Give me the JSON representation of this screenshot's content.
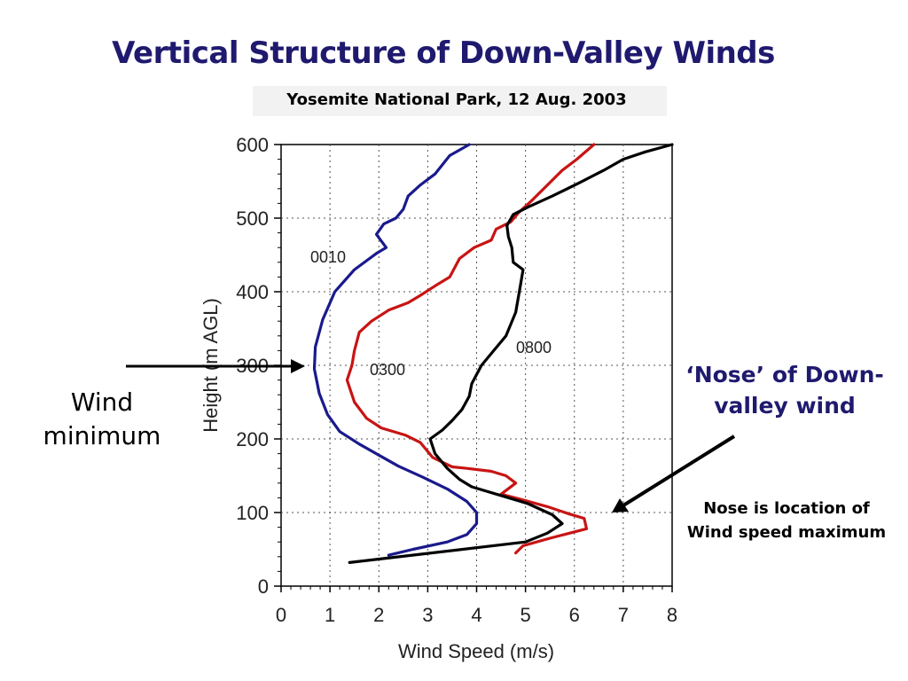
{
  "slide": {
    "title": "Vertical Structure of Down-Valley Winds",
    "subtitle": "Yosemite National Park, 12 Aug. 2003"
  },
  "annotations": {
    "wind_minimum": "Wind minimum",
    "nose": "‘Nose’ of Down-valley wind",
    "nose_desc": "Nose is location of Wind speed maximum"
  },
  "chart_data": {
    "type": "line",
    "xlabel": "Wind Speed (m/s)",
    "ylabel": "Height (m AGL)",
    "xlim": [
      0,
      8
    ],
    "ylim": [
      0,
      600
    ],
    "x_ticks": [
      "0",
      "1",
      "2",
      "3",
      "4",
      "5",
      "6",
      "7",
      "8"
    ],
    "y_ticks": [
      "0",
      "100",
      "200",
      "300",
      "400",
      "500",
      "600"
    ],
    "grid": true,
    "series": [
      {
        "name": "0010",
        "color": "#1a1a8c",
        "points": [
          [
            2.2,
            42
          ],
          [
            2.7,
            50
          ],
          [
            3.4,
            60
          ],
          [
            3.8,
            70
          ],
          [
            4.0,
            85
          ],
          [
            4.0,
            100
          ],
          [
            3.8,
            115
          ],
          [
            3.4,
            132
          ],
          [
            2.9,
            148
          ],
          [
            2.4,
            163
          ],
          [
            2.0,
            178
          ],
          [
            1.6,
            193
          ],
          [
            1.2,
            210
          ],
          [
            0.95,
            233
          ],
          [
            0.78,
            262
          ],
          [
            0.68,
            295
          ],
          [
            0.7,
            325
          ],
          [
            0.85,
            362
          ],
          [
            1.1,
            400
          ],
          [
            1.5,
            430
          ],
          [
            1.95,
            452
          ],
          [
            2.15,
            460
          ],
          [
            1.95,
            478
          ],
          [
            2.1,
            492
          ],
          [
            2.35,
            500
          ],
          [
            2.5,
            512
          ],
          [
            2.6,
            530
          ],
          [
            2.85,
            545
          ],
          [
            3.15,
            560
          ],
          [
            3.45,
            585
          ],
          [
            3.85,
            600
          ]
        ]
      },
      {
        "name": "0300",
        "color": "#c81414",
        "points": [
          [
            4.8,
            45
          ],
          [
            4.95,
            55
          ],
          [
            5.5,
            65
          ],
          [
            6.25,
            78
          ],
          [
            6.2,
            92
          ],
          [
            5.9,
            98
          ],
          [
            5.45,
            108
          ],
          [
            4.9,
            118
          ],
          [
            4.5,
            125
          ],
          [
            4.8,
            140
          ],
          [
            4.7,
            145
          ],
          [
            4.6,
            150
          ],
          [
            4.3,
            156
          ],
          [
            3.8,
            160
          ],
          [
            3.5,
            162
          ],
          [
            3.25,
            170
          ],
          [
            3.1,
            175
          ],
          [
            2.85,
            195
          ],
          [
            2.55,
            205
          ],
          [
            2.05,
            215
          ],
          [
            1.75,
            228
          ],
          [
            1.5,
            250
          ],
          [
            1.35,
            280
          ],
          [
            1.45,
            300
          ],
          [
            1.5,
            320
          ],
          [
            1.6,
            345
          ],
          [
            1.85,
            360
          ],
          [
            2.2,
            375
          ],
          [
            2.6,
            385
          ],
          [
            2.85,
            395
          ],
          [
            3.2,
            410
          ],
          [
            3.45,
            420
          ],
          [
            3.65,
            445
          ],
          [
            3.95,
            460
          ],
          [
            4.3,
            470
          ],
          [
            4.4,
            485
          ],
          [
            4.7,
            495
          ],
          [
            4.85,
            507
          ],
          [
            5.1,
            522
          ],
          [
            5.45,
            545
          ],
          [
            5.75,
            565
          ],
          [
            6.05,
            580
          ],
          [
            6.4,
            600
          ]
        ]
      },
      {
        "name": "0800",
        "color": "#000000",
        "points": [
          [
            1.4,
            32
          ],
          [
            5.0,
            60
          ],
          [
            5.45,
            72
          ],
          [
            5.75,
            85
          ],
          [
            5.55,
            97
          ],
          [
            5.05,
            112
          ],
          [
            4.55,
            122
          ],
          [
            3.9,
            135
          ],
          [
            3.65,
            145
          ],
          [
            3.4,
            160
          ],
          [
            3.15,
            180
          ],
          [
            3.05,
            200
          ],
          [
            3.3,
            212
          ],
          [
            3.5,
            225
          ],
          [
            3.7,
            240
          ],
          [
            3.85,
            258
          ],
          [
            3.9,
            275
          ],
          [
            4.1,
            300
          ],
          [
            4.35,
            320
          ],
          [
            4.6,
            340
          ],
          [
            4.8,
            372
          ],
          [
            4.9,
            410
          ],
          [
            4.95,
            430
          ],
          [
            4.75,
            440
          ],
          [
            4.72,
            460
          ],
          [
            4.65,
            475
          ],
          [
            4.62,
            490
          ],
          [
            4.75,
            505
          ],
          [
            5.05,
            515
          ],
          [
            5.55,
            530
          ],
          [
            6.1,
            548
          ],
          [
            6.6,
            565
          ],
          [
            7.0,
            580
          ],
          [
            7.45,
            590
          ],
          [
            8.0,
            600
          ]
        ]
      }
    ],
    "series_labels": [
      "0010",
      "0300",
      "0800"
    ]
  }
}
